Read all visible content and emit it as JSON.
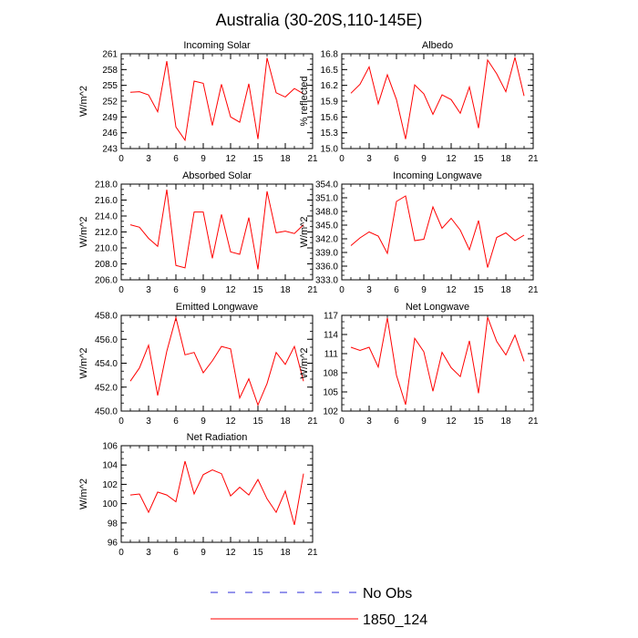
{
  "figure_title": "Australia (30-20S,110-145E)",
  "legend": {
    "placement": "bottom-center",
    "entries": [
      {
        "label": "No Obs",
        "color": "#2b2bd9",
        "dash": true
      },
      {
        "label": "1850_124",
        "color": "#ff0000",
        "dash": false
      }
    ]
  },
  "chart_data": [
    {
      "type": "line",
      "title": "Incoming Solar",
      "ylabel": "W/m^2",
      "xlim": [
        0,
        21
      ],
      "ylim": [
        243,
        261
      ],
      "xticks": [
        0,
        3,
        6,
        9,
        12,
        15,
        18,
        21
      ],
      "yticks": [
        243,
        246,
        249,
        252,
        255,
        258,
        261
      ],
      "ytick_labels": [
        "243",
        "246",
        "249",
        "252",
        "255",
        "258",
        "261"
      ],
      "series": [
        {
          "name": "1850_124",
          "color": "#ff0000",
          "x": [
            1,
            2,
            3,
            4,
            5,
            6,
            7,
            8,
            9,
            10,
            11,
            12,
            13,
            14,
            15,
            16,
            17,
            18,
            19,
            20
          ],
          "y": [
            253.7,
            253.8,
            253.2,
            250.0,
            259.6,
            247.1,
            244.6,
            255.8,
            255.4,
            247.4,
            255.2,
            249.0,
            248.0,
            255.3,
            244.8,
            260.2,
            253.6,
            252.8,
            254.4,
            253.4
          ]
        }
      ]
    },
    {
      "type": "line",
      "title": "Albedo",
      "ylabel": "% reflected",
      "xlim": [
        0,
        21
      ],
      "ylim": [
        15.0,
        16.8
      ],
      "xticks": [
        0,
        3,
        6,
        9,
        12,
        15,
        18,
        21
      ],
      "yticks": [
        15.0,
        15.3,
        15.6,
        15.9,
        16.2,
        16.5,
        16.8
      ],
      "ytick_labels": [
        "15.0",
        "15.3",
        "15.6",
        "15.9",
        "16.2",
        "16.5",
        "16.8"
      ],
      "series": [
        {
          "name": "1850_124",
          "color": "#ff0000",
          "x": [
            1,
            2,
            3,
            4,
            5,
            6,
            7,
            8,
            9,
            10,
            11,
            12,
            13,
            14,
            15,
            16,
            17,
            18,
            19,
            20
          ],
          "y": [
            16.05,
            16.22,
            16.55,
            15.85,
            16.4,
            15.93,
            15.18,
            16.21,
            16.04,
            15.65,
            16.02,
            15.93,
            15.67,
            16.17,
            15.39,
            16.68,
            16.42,
            16.08,
            16.73,
            16.0
          ]
        }
      ]
    },
    {
      "type": "line",
      "title": "Absorbed Solar",
      "ylabel": "W/m^2",
      "xlim": [
        0,
        21
      ],
      "ylim": [
        206.0,
        218.0
      ],
      "xticks": [
        0,
        3,
        6,
        9,
        12,
        15,
        18,
        21
      ],
      "yticks": [
        206,
        208,
        210,
        212,
        214,
        216,
        218
      ],
      "ytick_labels": [
        "206.0",
        "208.0",
        "210.0",
        "212.0",
        "214.0",
        "216.0",
        "218.0"
      ],
      "series": [
        {
          "name": "1850_124",
          "color": "#ff0000",
          "x": [
            1,
            2,
            3,
            4,
            5,
            6,
            7,
            8,
            9,
            10,
            11,
            12,
            13,
            14,
            15,
            16,
            17,
            18,
            19,
            20
          ],
          "y": [
            212.9,
            212.6,
            211.2,
            210.2,
            217.3,
            207.8,
            207.5,
            214.5,
            214.5,
            208.7,
            214.2,
            209.5,
            209.2,
            213.8,
            207.3,
            217.1,
            211.9,
            212.1,
            211.8,
            212.9
          ]
        }
      ]
    },
    {
      "type": "line",
      "title": "Incoming Longwave",
      "ylabel": "W/m^2",
      "xlim": [
        0,
        21
      ],
      "ylim": [
        333.0,
        354.0
      ],
      "xticks": [
        0,
        3,
        6,
        9,
        12,
        15,
        18,
        21
      ],
      "yticks": [
        333,
        336,
        339,
        342,
        345,
        348,
        351,
        354
      ],
      "ytick_labels": [
        "333.0",
        "336.0",
        "339.0",
        "342.0",
        "345.0",
        "348.0",
        "351.0",
        "354.0"
      ],
      "series": [
        {
          "name": "1850_124",
          "color": "#ff0000",
          "x": [
            1,
            2,
            3,
            4,
            5,
            6,
            7,
            8,
            9,
            10,
            11,
            12,
            13,
            14,
            15,
            16,
            17,
            18,
            19,
            20
          ],
          "y": [
            340.5,
            342.2,
            343.5,
            342.6,
            338.8,
            350.2,
            351.4,
            341.6,
            341.9,
            349.0,
            344.3,
            346.5,
            343.9,
            339.6,
            346.0,
            335.7,
            342.3,
            343.3,
            341.6,
            342.8
          ]
        }
      ]
    },
    {
      "type": "line",
      "title": "Emitted Longwave",
      "ylabel": "W/m^2",
      "xlim": [
        0,
        21
      ],
      "ylim": [
        450.0,
        458.0
      ],
      "xticks": [
        0,
        3,
        6,
        9,
        12,
        15,
        18,
        21
      ],
      "yticks": [
        450,
        452,
        454,
        456,
        458
      ],
      "ytick_labels": [
        "450.0",
        "452.0",
        "454.0",
        "456.0",
        "458.0"
      ],
      "series": [
        {
          "name": "1850_124",
          "color": "#ff0000",
          "x": [
            1,
            2,
            3,
            4,
            5,
            6,
            7,
            8,
            9,
            10,
            11,
            12,
            13,
            14,
            15,
            16,
            17,
            18,
            19,
            20
          ],
          "y": [
            452.5,
            453.6,
            455.5,
            451.3,
            455.0,
            457.8,
            454.7,
            454.9,
            453.2,
            454.2,
            455.4,
            455.2,
            451.1,
            452.7,
            450.5,
            452.3,
            454.9,
            453.9,
            455.4,
            452.5
          ]
        }
      ]
    },
    {
      "type": "line",
      "title": "Net Longwave",
      "ylabel": "W/m^2",
      "xlim": [
        0,
        21
      ],
      "ylim": [
        102,
        117
      ],
      "xticks": [
        0,
        3,
        6,
        9,
        12,
        15,
        18,
        21
      ],
      "yticks": [
        102,
        105,
        108,
        111,
        114,
        117
      ],
      "ytick_labels": [
        "102",
        "105",
        "108",
        "111",
        "114",
        "117"
      ],
      "series": [
        {
          "name": "1850_124",
          "color": "#ff0000",
          "x": [
            1,
            2,
            3,
            4,
            5,
            6,
            7,
            8,
            9,
            10,
            11,
            12,
            13,
            14,
            15,
            16,
            17,
            18,
            19,
            20
          ],
          "y": [
            112.0,
            111.5,
            112.0,
            108.9,
            116.6,
            107.6,
            103.0,
            113.4,
            111.3,
            105.1,
            111.2,
            108.8,
            107.4,
            113.0,
            104.8,
            116.7,
            112.9,
            110.8,
            113.9,
            109.8
          ]
        }
      ]
    },
    {
      "type": "line",
      "title": "Net Radiation",
      "ylabel": "W/m^2",
      "xlim": [
        0,
        21
      ],
      "ylim": [
        96,
        106
      ],
      "xticks": [
        0,
        3,
        6,
        9,
        12,
        15,
        18,
        21
      ],
      "yticks": [
        96,
        98,
        100,
        102,
        104,
        106
      ],
      "ytick_labels": [
        "96",
        "98",
        "100",
        "102",
        "104",
        "106"
      ],
      "series": [
        {
          "name": "1850_124",
          "color": "#ff0000",
          "x": [
            1,
            2,
            3,
            4,
            5,
            6,
            7,
            8,
            9,
            10,
            11,
            12,
            13,
            14,
            15,
            16,
            17,
            18,
            19,
            20
          ],
          "y": [
            100.9,
            101.0,
            99.1,
            101.2,
            100.9,
            100.2,
            104.4,
            101.0,
            103.0,
            103.5,
            103.1,
            100.8,
            101.7,
            100.9,
            102.5,
            100.5,
            99.1,
            101.3,
            97.8,
            103.1
          ]
        }
      ]
    }
  ]
}
